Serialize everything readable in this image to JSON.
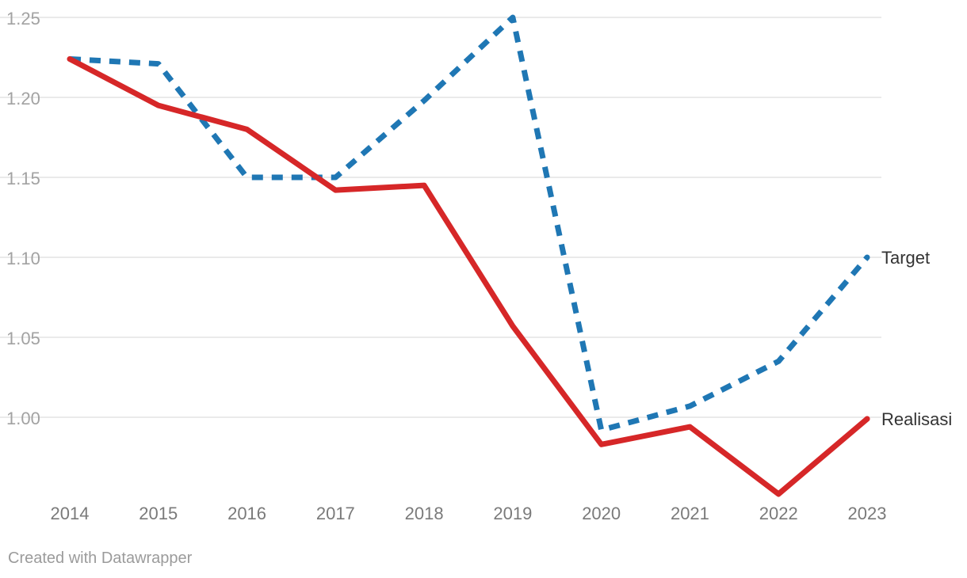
{
  "chart_data": {
    "type": "line",
    "title": "",
    "xlabel": "",
    "ylabel": "",
    "x": [
      "2014",
      "2015",
      "2016",
      "2017",
      "2018",
      "2019",
      "2020",
      "2021",
      "2022",
      "2023"
    ],
    "ylim": [
      0.95,
      1.25
    ],
    "yticks": [
      "1.25",
      "1.20",
      "1.15",
      "1.10",
      "1.05",
      "1.00"
    ],
    "grid": true,
    "legend": "direct labels at right end of lines",
    "series": [
      {
        "name": "Target",
        "color": "#1f77b4",
        "style": "dashed",
        "values": [
          1.224,
          1.221,
          1.15,
          1.15,
          1.198,
          1.25,
          0.992,
          1.007,
          1.035,
          1.1
        ]
      },
      {
        "name": "Realisasi",
        "color": "#d62728",
        "style": "solid",
        "values": [
          1.224,
          1.195,
          1.18,
          1.142,
          1.145,
          1.057,
          0.983,
          0.994,
          0.952,
          0.999
        ]
      }
    ]
  },
  "footer": {
    "credit": "Created with Datawrapper"
  }
}
